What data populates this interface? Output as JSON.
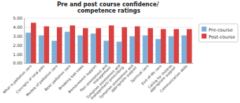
{
  "chart_data": {
    "type": "bar",
    "title": "Pre and post course confidence/\ncompetence ratings",
    "categories": [
      "What is palliative care",
      "Concepts of total pain",
      "Models of palliative care",
      "Basic palliative care",
      "Breaking bad news",
      "Bereavement support",
      "Pain assessment and management",
      "Symptom assessment and management/ prescribing",
      "Symptom assessment and appropriate support",
      "Spiritual care",
      "End-of-life care",
      "Caring for children appropriate support",
      "Communication skills"
    ],
    "series": [
      {
        "name": "Pre-course",
        "color": "#7ab0d9",
        "values": [
          3.4,
          3.1,
          2.5,
          3.5,
          3.1,
          3.3,
          2.5,
          2.4,
          3.0,
          3.1,
          2.7,
          3.0,
          3.1
        ]
      },
      {
        "name": "Post-course",
        "color": "#d94040",
        "values": [
          4.5,
          4.1,
          4.0,
          4.2,
          3.9,
          3.9,
          4.2,
          4.0,
          4.1,
          3.9,
          3.8,
          3.8,
          3.8
        ]
      }
    ],
    "ylim": [
      0,
      5.0
    ],
    "yticks": [
      {
        "value": 0,
        "label": "0.00"
      },
      {
        "value": 1,
        "label": "1.00"
      },
      {
        "value": 2,
        "label": "2.00"
      },
      {
        "value": 3,
        "label": "3.00"
      },
      {
        "value": 4,
        "label": "4.00"
      },
      {
        "value": 5,
        "label": "5.00"
      }
    ],
    "grid": true,
    "legend": "right"
  }
}
